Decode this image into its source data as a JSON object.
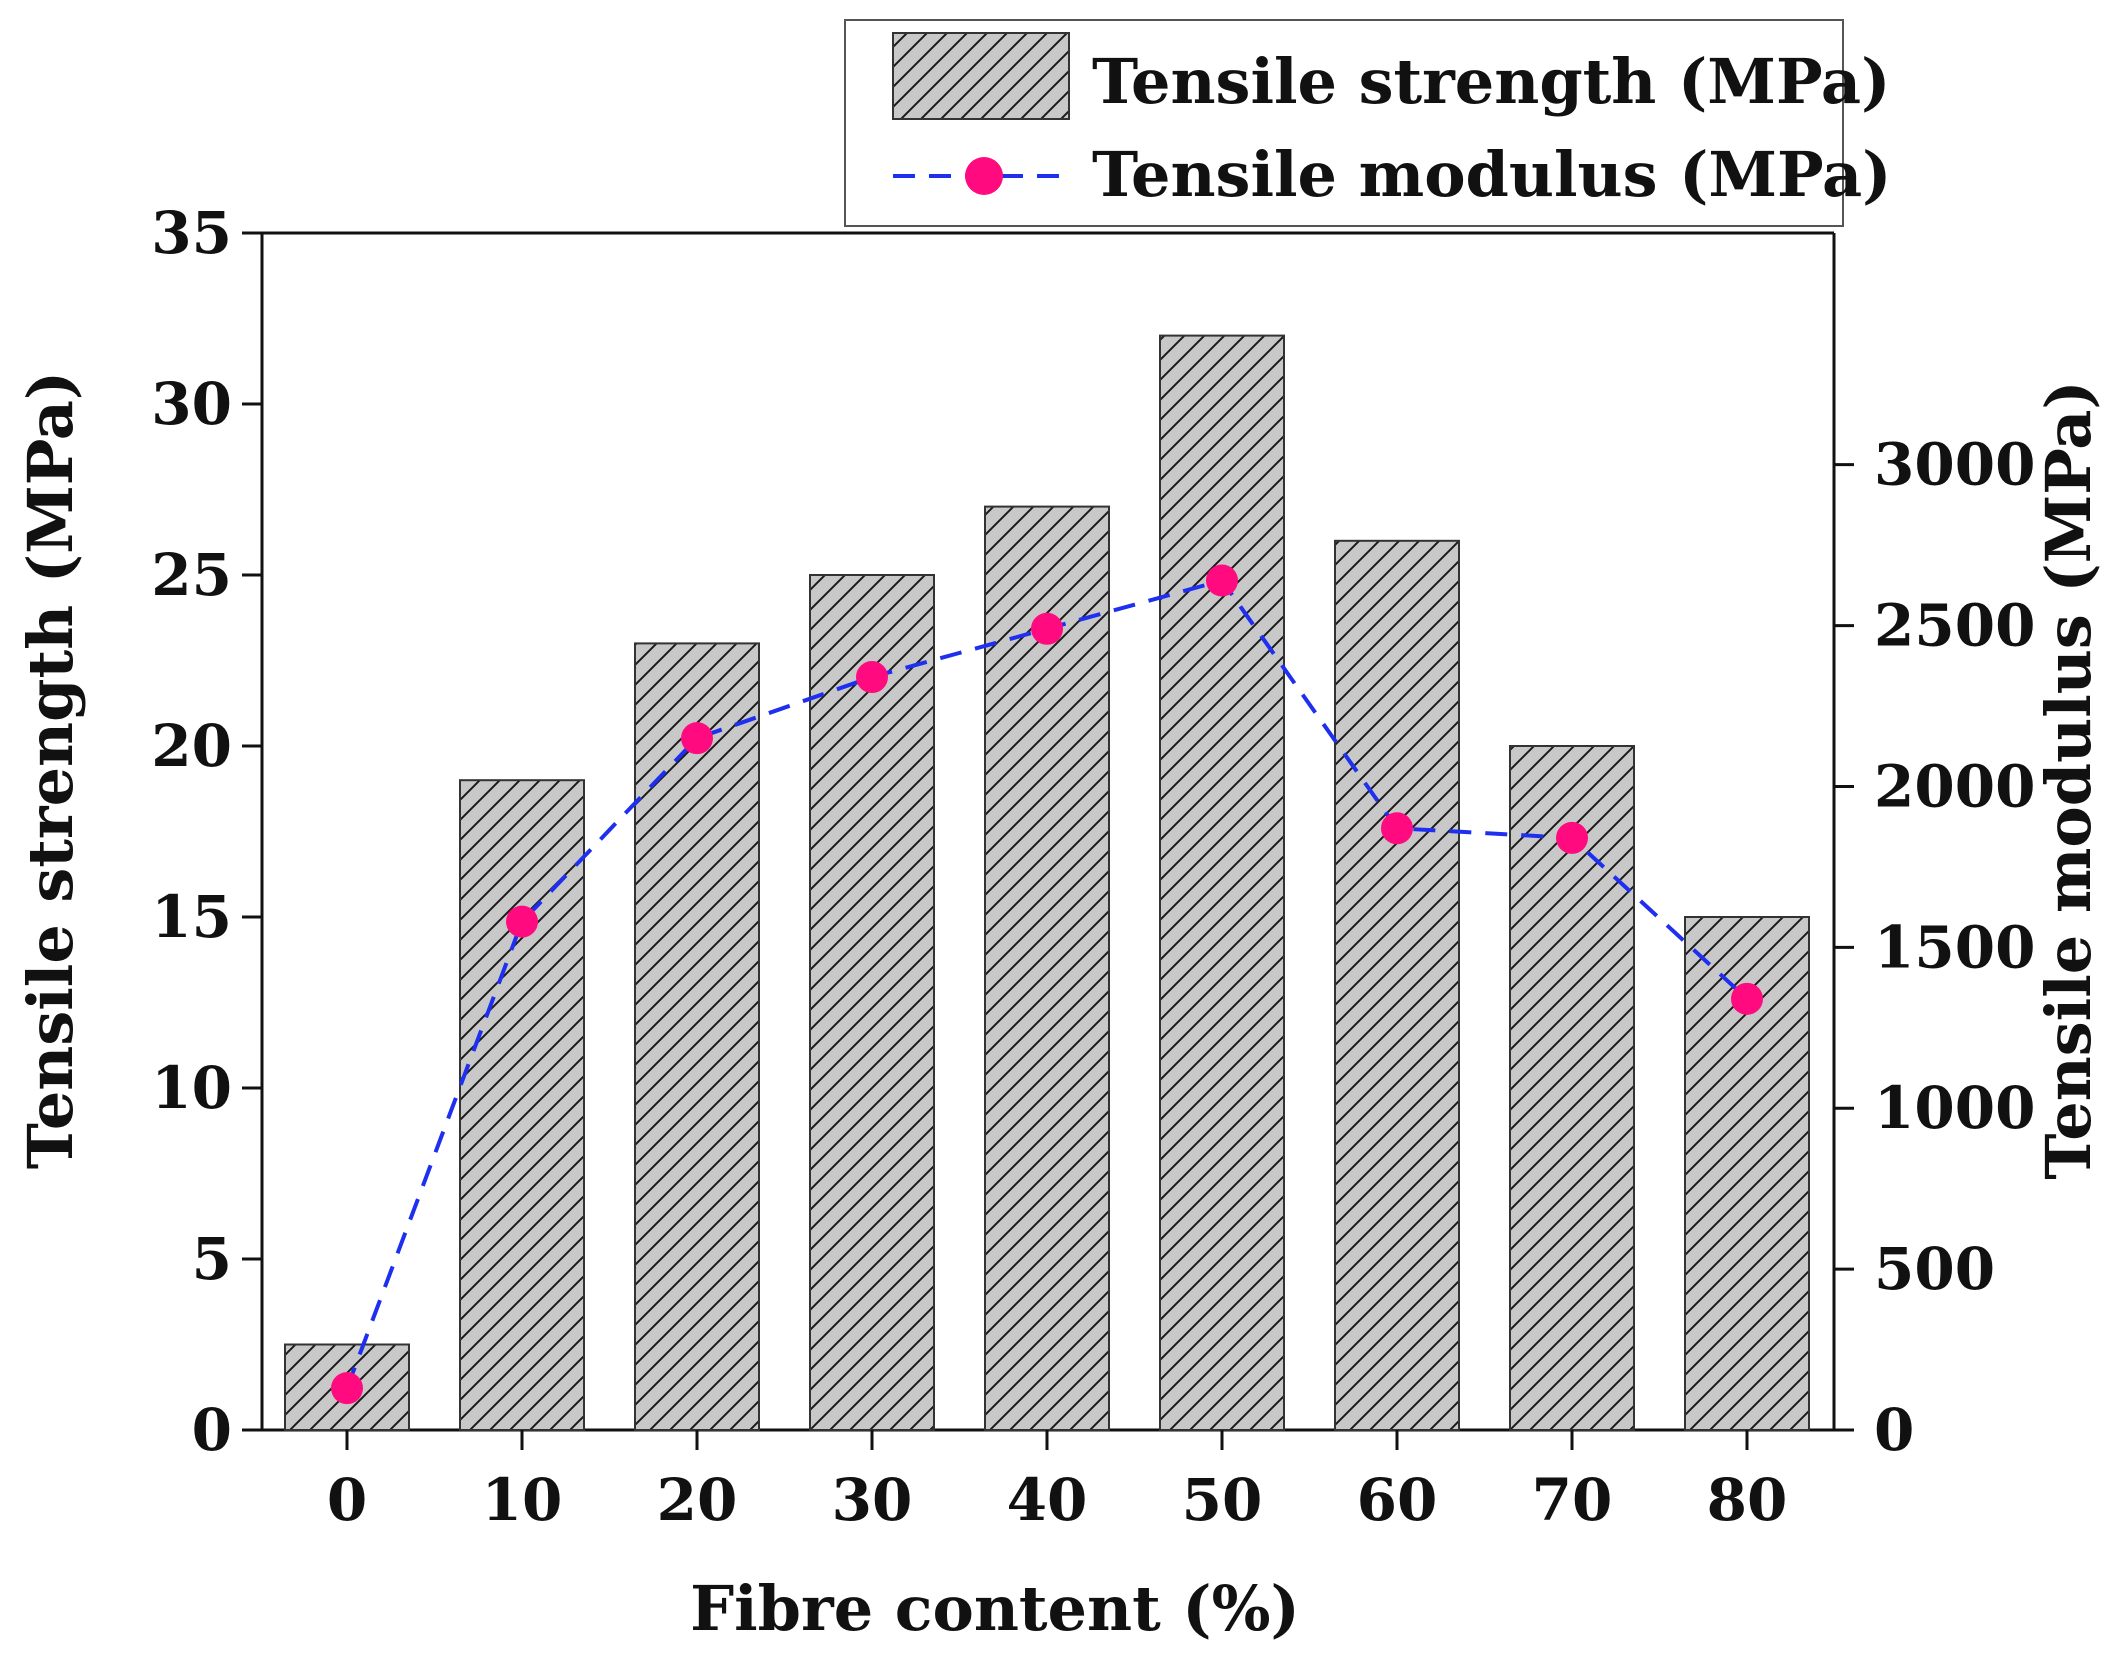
{
  "chart_data": {
    "type": "bar",
    "categories": [
      "0",
      "10",
      "20",
      "30",
      "40",
      "50",
      "60",
      "70",
      "80"
    ],
    "series": [
      {
        "name": "Tensile strength (MPa)",
        "type": "bar",
        "axis": "left",
        "values": [
          2.5,
          19,
          23,
          25,
          27,
          32,
          26,
          20,
          15
        ],
        "color": "#c8c8c8",
        "pattern": "diagonal-hatch"
      },
      {
        "name": "Tensile modulus (MPa)",
        "type": "line",
        "axis": "right",
        "values": [
          130,
          1580,
          2150,
          2340,
          2490,
          2640,
          1870,
          1840,
          1340
        ],
        "line_color": "#1f2ff0",
        "marker_color": "#ff0a7f",
        "line_style": "dashed"
      }
    ],
    "xlabel": "Fibre content (%)",
    "ylabel_left": "Tensile strength (MPa)",
    "ylabel_right": "Tensile modulus (MPa)",
    "ylim_left": [
      0,
      35
    ],
    "ylim_right": [
      0,
      3720
    ],
    "yticks_left": [
      "0",
      "5",
      "10",
      "15",
      "20",
      "25",
      "30",
      "35"
    ],
    "yticks_right": [
      "0",
      "500",
      "1000",
      "1500",
      "2000",
      "2500",
      "3000"
    ],
    "legend_placement": "top-right",
    "grid": false
  }
}
